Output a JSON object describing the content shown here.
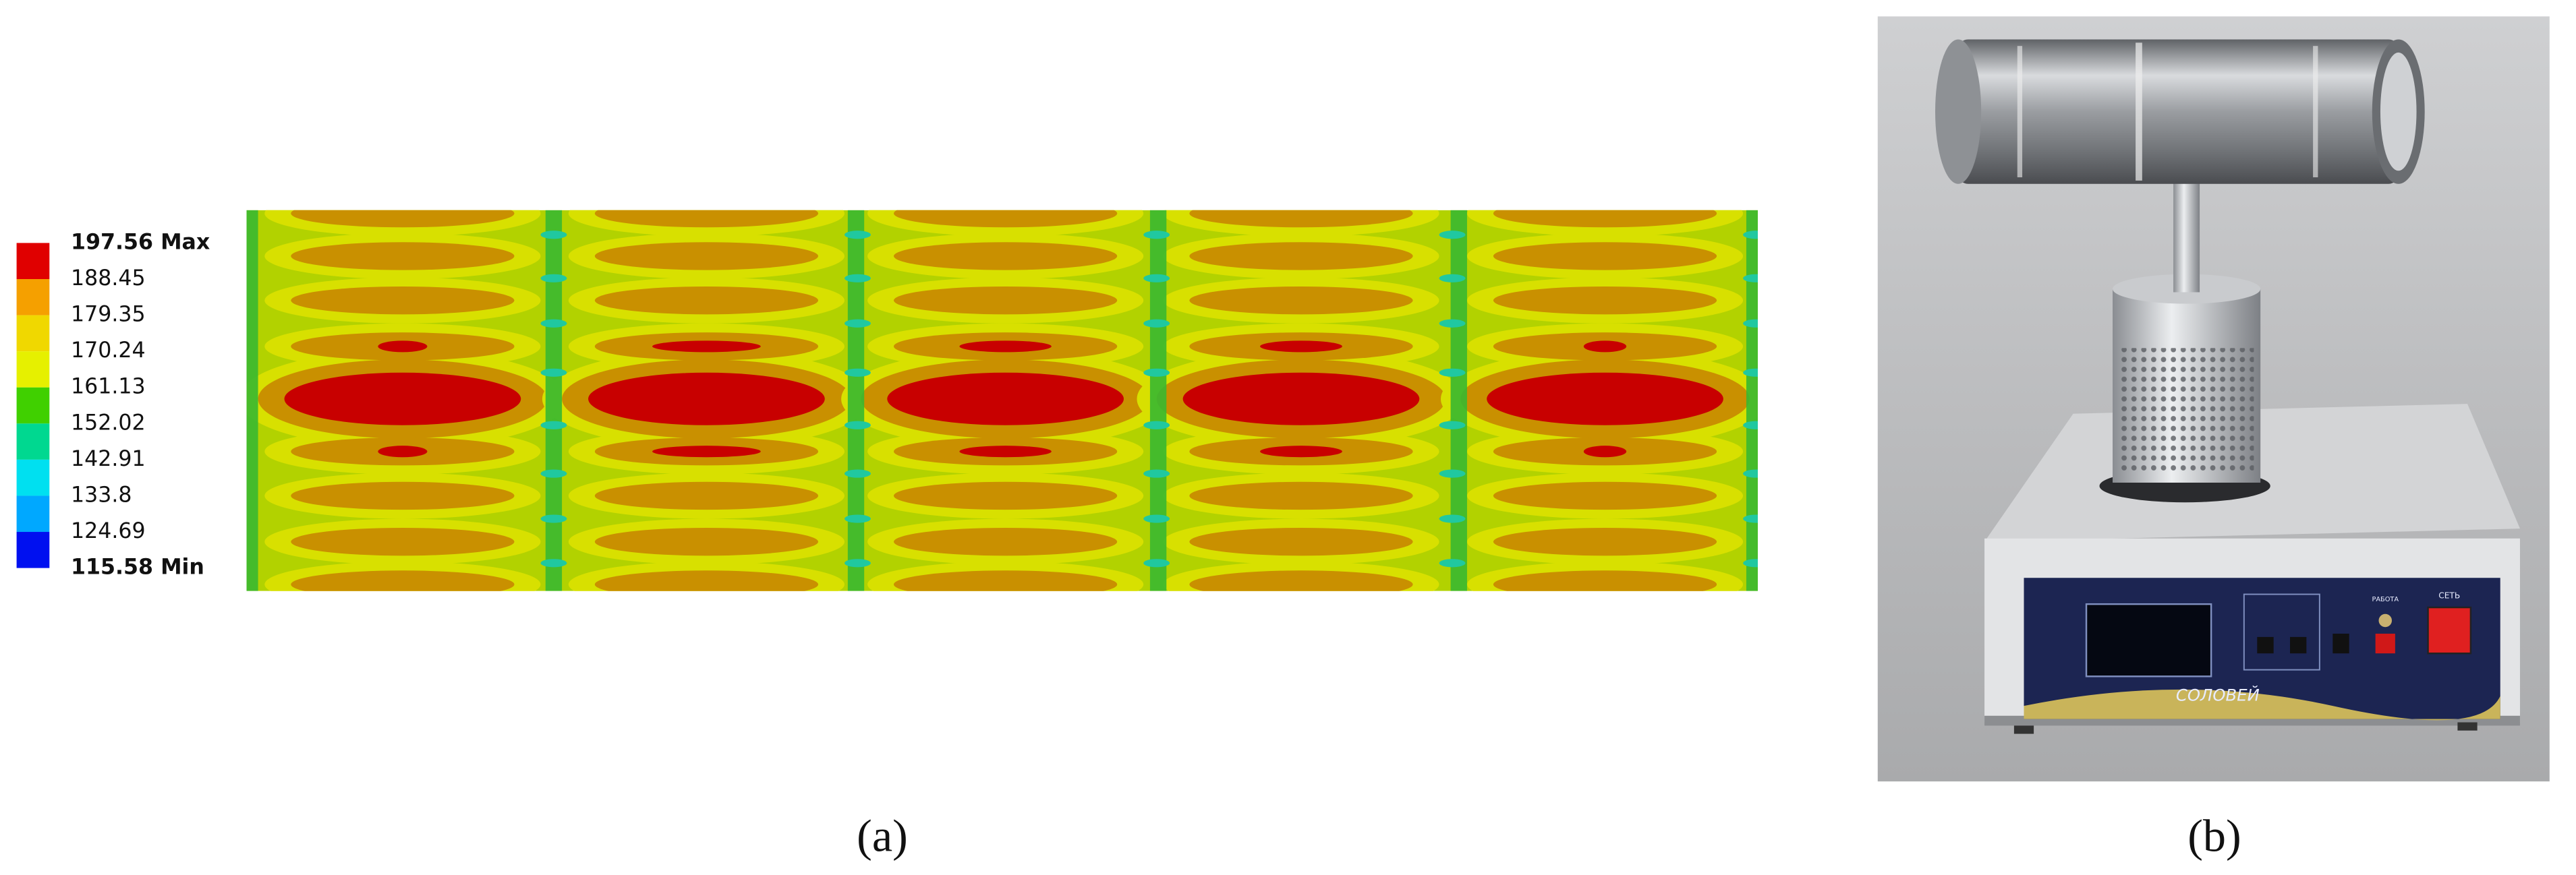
{
  "figure": {
    "panel_a": {
      "legend": {
        "labels": [
          "197.56 Max",
          "188.45",
          "179.35",
          "170.24",
          "161.13",
          "152.02",
          "142.91",
          "133.8",
          "124.69",
          "115.58 Min"
        ],
        "colors": [
          "#e00000",
          "#f5a000",
          "#f0d800",
          "#e6f000",
          "#40d000",
          "#00d890",
          "#00e0f0",
          "#00a8ff",
          "#0010f0"
        ]
      },
      "caption": "(a)"
    },
    "panel_b": {
      "caption": "(b)",
      "device_texts": [
        "СОЛОВЕЙ",
        "СЕТЬ",
        "РАБОТА"
      ]
    }
  }
}
